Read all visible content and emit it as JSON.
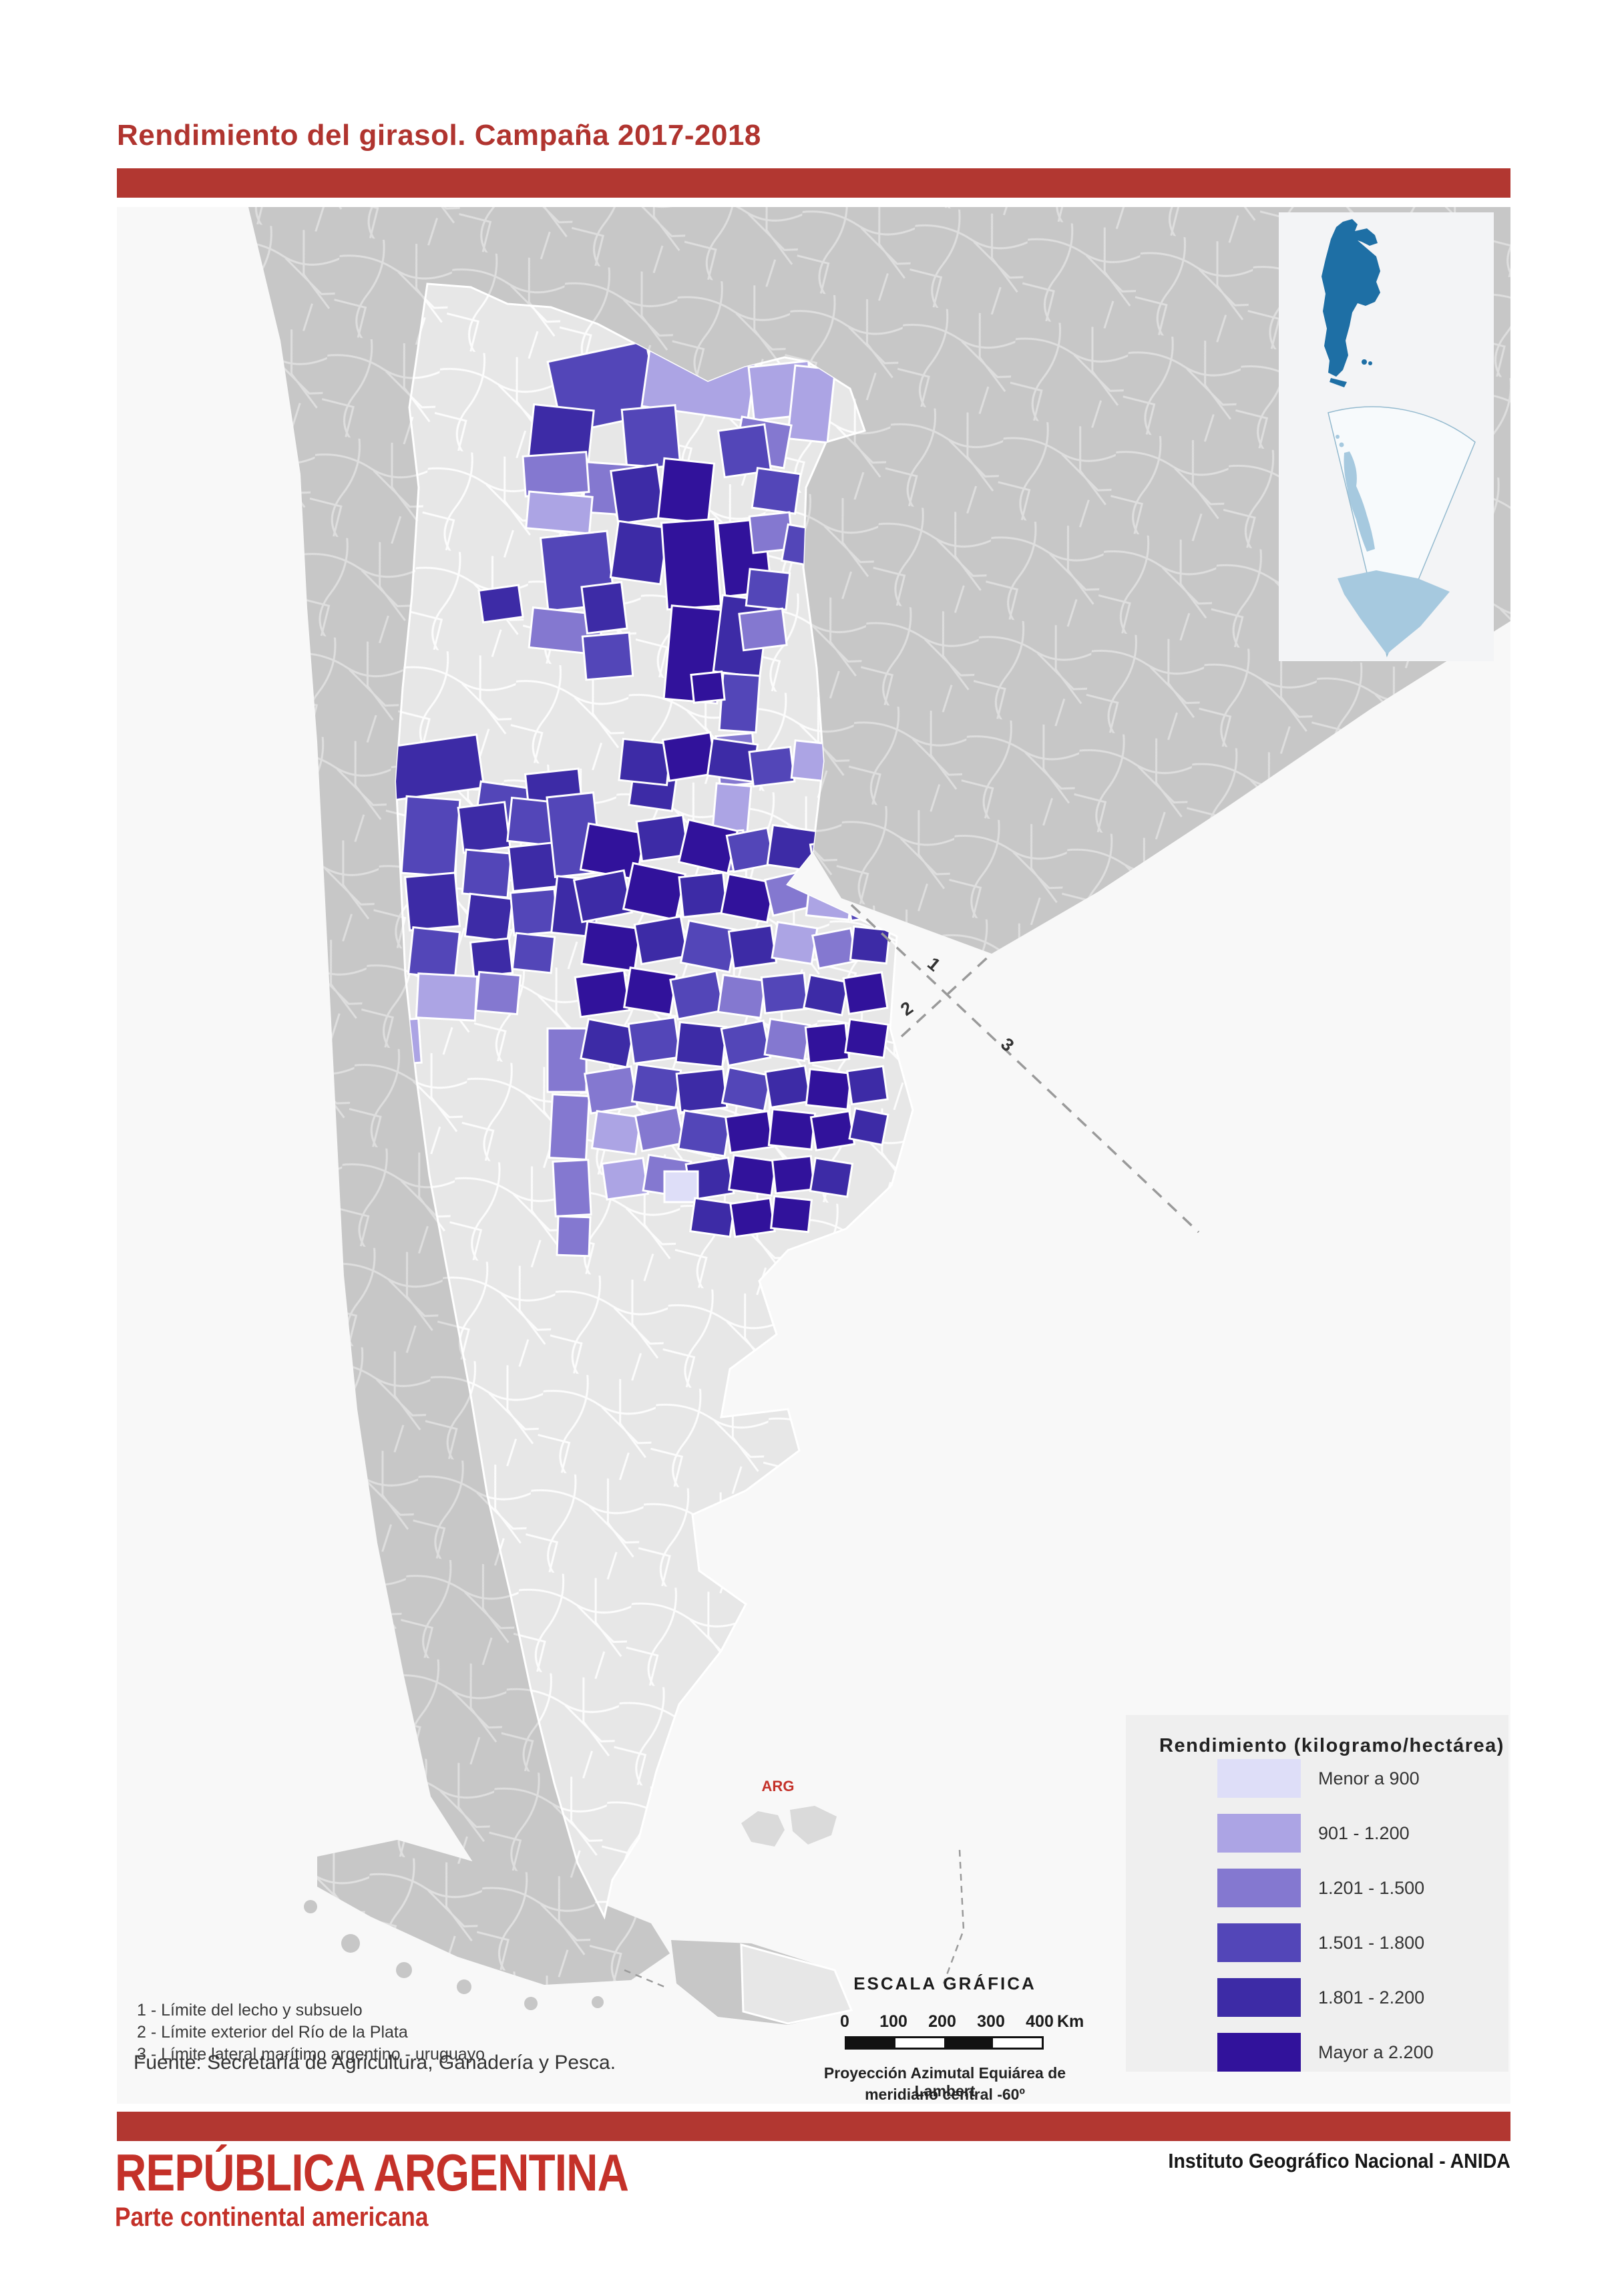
{
  "title": "Rendimiento del girasol. Campaña 2017-2018",
  "colors": {
    "title_red": "#B0342F",
    "red_bar": "#B23731",
    "footer_red": "#C43129",
    "ocean": "#F8F8F8",
    "neighbors": "#C7C7C7",
    "argentina": "#E7E7E7",
    "malvinas": "#DADADA",
    "legend_bg": "#EFEFEF",
    "inset_bg": "#F3F4F6",
    "inset_argentina": "#1E6FA5",
    "inset_antarctica": "#A6C9DF",
    "dashed_line": "#9A9A9A"
  },
  "legend": {
    "title": "Rendimiento (kilogramo/hectárea)",
    "classes": [
      {
        "label": "Menor a 900",
        "color": "#DEDEF8"
      },
      {
        "label": "901 - 1.200",
        "color": "#ACA4E4"
      },
      {
        "label": "1.201 - 1.500",
        "color": "#8478D0"
      },
      {
        "label": "1.501 - 1.800",
        "color": "#5346B8"
      },
      {
        "label": "1.801 - 2.200",
        "color": "#3D2BA6"
      },
      {
        "label": "Mayor a 2.200",
        "color": "#31129B"
      }
    ]
  },
  "scale_bar": {
    "title": "ESCALA GRÁFICA",
    "ticks": [
      "0",
      "100",
      "200",
      "300",
      "400"
    ],
    "unit": "Km",
    "projection_line1": "Proyección Azimutal Equiárea de Lambert",
    "projection_line2": "meridiano central -60º"
  },
  "notes": [
    "1 - Límite del lecho y subsuelo",
    "2 - Límite exterior del Río de la Plata",
    "3 - Límite lateral marítimo argentino - uruguayo"
  ],
  "source": "Fuente: Secretaría de Agricultura, Ganadería y Pesca.",
  "footer": {
    "country": "REPÚBLICA ARGENTINA",
    "subtitle": "Parte continental americana",
    "agency": "Instituto Geográfico Nacional - ANIDA"
  },
  "map": {
    "arg_label": "ARG",
    "limits": [
      "1",
      "2",
      "3"
    ]
  },
  "map_cells": [
    [
      655,
      215,
      150,
      110,
      -12,
      4
    ],
    [
      620,
      300,
      90,
      85,
      6,
      5
    ],
    [
      795,
      170,
      160,
      140,
      8,
      2
    ],
    [
      950,
      235,
      90,
      80,
      -6,
      2
    ],
    [
      1010,
      240,
      60,
      110,
      6,
      2
    ],
    [
      930,
      320,
      75,
      65,
      10,
      3
    ],
    [
      760,
      300,
      80,
      90,
      -5,
      4
    ],
    [
      700,
      385,
      95,
      75,
      4,
      3
    ],
    [
      610,
      370,
      95,
      60,
      -4,
      3
    ],
    [
      615,
      430,
      95,
      55,
      5,
      2
    ],
    [
      640,
      490,
      100,
      110,
      -6,
      4
    ],
    [
      620,
      605,
      105,
      60,
      6,
      3
    ],
    [
      745,
      390,
      70,
      80,
      -8,
      5
    ],
    [
      815,
      380,
      75,
      90,
      6,
      6
    ],
    [
      745,
      475,
      75,
      85,
      8,
      5
    ],
    [
      820,
      470,
      80,
      130,
      -4,
      6
    ],
    [
      825,
      600,
      80,
      140,
      5,
      6
    ],
    [
      905,
      470,
      70,
      110,
      -6,
      6
    ],
    [
      900,
      585,
      70,
      115,
      7,
      5
    ],
    [
      700,
      565,
      60,
      70,
      -7,
      5
    ],
    [
      700,
      640,
      70,
      65,
      -5,
      4
    ],
    [
      905,
      330,
      70,
      70,
      -8,
      4
    ],
    [
      955,
      395,
      65,
      60,
      8,
      4
    ],
    [
      950,
      460,
      60,
      55,
      -6,
      3
    ],
    [
      1000,
      480,
      60,
      55,
      10,
      4
    ],
    [
      1045,
      520,
      50,
      48,
      -8,
      6
    ],
    [
      945,
      545,
      60,
      55,
      6,
      4
    ],
    [
      935,
      605,
      65,
      55,
      -7,
      3
    ],
    [
      905,
      700,
      55,
      85,
      4,
      4
    ],
    [
      900,
      790,
      55,
      75,
      -5,
      3
    ],
    [
      895,
      865,
      52,
      70,
      5,
      2
    ],
    [
      890,
      935,
      50,
      60,
      -4,
      3
    ],
    [
      545,
      570,
      60,
      48,
      -8,
      5
    ],
    [
      770,
      850,
      65,
      50,
      8,
      5
    ],
    [
      1150,
      525,
      65,
      55,
      -6,
      4
    ],
    [
      1205,
      560,
      55,
      50,
      8,
      3
    ],
    [
      1150,
      590,
      55,
      48,
      -5,
      3
    ],
    [
      395,
      800,
      150,
      80,
      -8,
      5
    ],
    [
      540,
      865,
      75,
      70,
      8,
      4
    ],
    [
      615,
      845,
      80,
      70,
      -6,
      5
    ],
    [
      430,
      885,
      80,
      115,
      4,
      4
    ],
    [
      435,
      1000,
      75,
      80,
      -5,
      5
    ],
    [
      440,
      1082,
      70,
      70,
      6,
      4
    ],
    [
      515,
      895,
      70,
      68,
      -7,
      5
    ],
    [
      588,
      888,
      70,
      65,
      6,
      4
    ],
    [
      520,
      965,
      68,
      66,
      5,
      4
    ],
    [
      590,
      955,
      68,
      66,
      -6,
      5
    ],
    [
      525,
      1032,
      64,
      64,
      7,
      5
    ],
    [
      592,
      1024,
      66,
      64,
      -5,
      4
    ],
    [
      532,
      1098,
      58,
      52,
      -6,
      5
    ],
    [
      595,
      1090,
      58,
      54,
      6,
      4
    ],
    [
      450,
      1150,
      88,
      66,
      3,
      2
    ],
    [
      372,
      1218,
      82,
      66,
      -4,
      2
    ],
    [
      540,
      1148,
      62,
      58,
      5,
      3
    ],
    [
      650,
      880,
      70,
      120,
      -6,
      4
    ],
    [
      655,
      1005,
      65,
      85,
      6,
      5
    ],
    [
      645,
      1230,
      58,
      95,
      0,
      3
    ],
    [
      650,
      1330,
      55,
      95,
      3,
      3
    ],
    [
      655,
      1428,
      53,
      82,
      -3,
      3
    ],
    [
      660,
      1512,
      48,
      58,
      2,
      3
    ],
    [
      755,
      800,
      72,
      62,
      6,
      5
    ],
    [
      822,
      792,
      72,
      62,
      -9,
      6
    ],
    [
      888,
      800,
      68,
      56,
      8,
      5
    ],
    [
      950,
      812,
      62,
      52,
      -7,
      4
    ],
    [
      1013,
      802,
      66,
      56,
      6,
      2
    ],
    [
      1076,
      812,
      56,
      50,
      -6,
      4
    ],
    [
      1130,
      822,
      52,
      46,
      8,
      3
    ],
    [
      862,
      698,
      46,
      42,
      -6,
      6
    ],
    [
      700,
      930,
      85,
      70,
      10,
      6
    ],
    [
      782,
      915,
      70,
      60,
      -8,
      5
    ],
    [
      848,
      925,
      75,
      65,
      13,
      6
    ],
    [
      918,
      935,
      62,
      55,
      -11,
      4
    ],
    [
      978,
      930,
      70,
      60,
      8,
      5
    ],
    [
      1042,
      950,
      56,
      50,
      -9,
      3
    ],
    [
      690,
      1000,
      76,
      64,
      -11,
      5
    ],
    [
      765,
      990,
      80,
      70,
      12,
      6
    ],
    [
      845,
      1000,
      66,
      60,
      -6,
      5
    ],
    [
      910,
      1005,
      70,
      60,
      11,
      6
    ],
    [
      976,
      1000,
      60,
      55,
      -13,
      3
    ],
    [
      1035,
      1010,
      64,
      54,
      6,
      2
    ],
    [
      1096,
      1015,
      55,
      50,
      -8,
      4
    ],
    [
      700,
      1075,
      80,
      64,
      8,
      6
    ],
    [
      780,
      1068,
      70,
      60,
      -10,
      5
    ],
    [
      850,
      1075,
      74,
      64,
      11,
      4
    ],
    [
      920,
      1080,
      64,
      56,
      -8,
      5
    ],
    [
      985,
      1075,
      60,
      54,
      9,
      2
    ],
    [
      1046,
      1085,
      58,
      50,
      -11,
      3
    ],
    [
      1101,
      1080,
      54,
      50,
      6,
      5
    ],
    [
      690,
      1148,
      74,
      60,
      -8,
      6
    ],
    [
      764,
      1144,
      70,
      60,
      9,
      6
    ],
    [
      834,
      1150,
      70,
      60,
      -11,
      4
    ],
    [
      904,
      1154,
      64,
      56,
      8,
      3
    ],
    [
      968,
      1150,
      64,
      54,
      -6,
      4
    ],
    [
      1033,
      1155,
      58,
      50,
      11,
      5
    ],
    [
      1092,
      1150,
      58,
      54,
      -9,
      6
    ],
    [
      700,
      1222,
      70,
      60,
      11,
      5
    ],
    [
      770,
      1218,
      70,
      60,
      -8,
      4
    ],
    [
      840,
      1224,
      70,
      60,
      6,
      5
    ],
    [
      910,
      1224,
      64,
      56,
      -11,
      4
    ],
    [
      974,
      1220,
      60,
      54,
      9,
      3
    ],
    [
      1034,
      1225,
      60,
      54,
      -6,
      6
    ],
    [
      1094,
      1220,
      58,
      50,
      8,
      6
    ],
    [
      705,
      1292,
      70,
      60,
      -9,
      3
    ],
    [
      775,
      1288,
      66,
      56,
      8,
      4
    ],
    [
      841,
      1294,
      70,
      58,
      -6,
      5
    ],
    [
      911,
      1294,
      64,
      54,
      11,
      4
    ],
    [
      975,
      1290,
      60,
      54,
      -9,
      5
    ],
    [
      1035,
      1294,
      62,
      54,
      6,
      6
    ],
    [
      1097,
      1290,
      54,
      50,
      -8,
      5
    ],
    [
      715,
      1358,
      66,
      56,
      8,
      2
    ],
    [
      781,
      1354,
      64,
      54,
      -11,
      3
    ],
    [
      845,
      1358,
      70,
      58,
      9,
      4
    ],
    [
      915,
      1358,
      64,
      54,
      -8,
      6
    ],
    [
      979,
      1354,
      64,
      54,
      6,
      6
    ],
    [
      1043,
      1358,
      58,
      50,
      -9,
      6
    ],
    [
      1101,
      1354,
      50,
      46,
      11,
      5
    ],
    [
      730,
      1428,
      62,
      54,
      -8,
      2
    ],
    [
      792,
      1424,
      64,
      54,
      9,
      3
    ],
    [
      856,
      1428,
      64,
      54,
      -9,
      5
    ],
    [
      920,
      1424,
      64,
      52,
      8,
      6
    ],
    [
      984,
      1424,
      58,
      50,
      -6,
      6
    ],
    [
      1042,
      1428,
      56,
      50,
      9,
      5
    ],
    [
      820,
      1444,
      50,
      46,
      0,
      1
    ],
    [
      862,
      1488,
      60,
      50,
      8,
      5
    ],
    [
      922,
      1488,
      60,
      50,
      -8,
      6
    ],
    [
      982,
      1484,
      56,
      48,
      6,
      6
    ]
  ]
}
